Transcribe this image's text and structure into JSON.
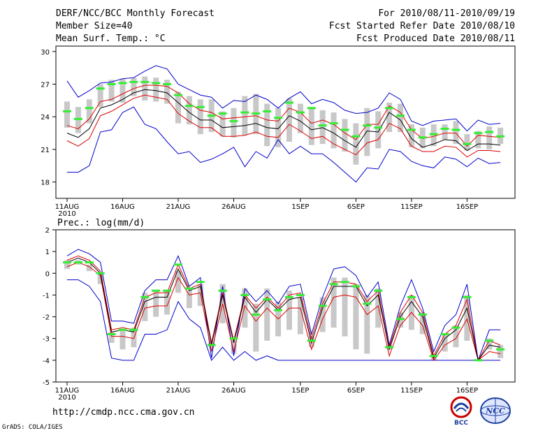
{
  "header": {
    "title": "DERF/NCC/BCC Monthly Forecast",
    "member_size": "Member Size=40",
    "panel1_var": "Mean Surf. Temp.: °C",
    "period": "For 2010/08/11-2010/09/19",
    "started": "Fcst Started Refer Date 2010/08/10",
    "produced": "Fcst Produced Date 2010/08/11"
  },
  "footer": {
    "url": "http://cmdp.ncc.cma.gov.cn",
    "grads": "GrADS: COLA/IGES",
    "logo1_text": "BCC",
    "logo2_text": "NCC"
  },
  "colors": {
    "envelope": "#0000cc",
    "spread": "#dd0000",
    "mean": "#000000",
    "box": "#c8c8c8",
    "median": "#33ee33"
  },
  "chart_data": [
    {
      "type": "box",
      "title": "Mean Surf. Temp.: °C",
      "x_tick_labels": [
        "11AUG",
        "16AUG",
        "21AUG",
        "26AUG",
        "1SEP",
        "6SEP",
        "11SEP",
        "16SEP"
      ],
      "x_tick_day_index": [
        0,
        5,
        10,
        15,
        21,
        26,
        31,
        36
      ],
      "x_year_label": "2010",
      "ylim": [
        16.5,
        30.5
      ],
      "yticks": [
        18,
        21,
        24,
        27,
        30
      ],
      "days": 40,
      "series": [
        {
          "name": "max",
          "values": [
            27.3,
            25.8,
            26.4,
            27.1,
            27.2,
            27.5,
            27.6,
            28.2,
            28.7,
            28.4,
            27.0,
            26.5,
            26.0,
            25.8,
            24.8,
            25.5,
            25.4,
            26.0,
            25.6,
            24.8,
            25.7,
            26.3,
            25.2,
            25.6,
            25.3,
            24.6,
            24.3,
            24.4,
            24.8,
            26.2,
            25.6,
            23.6,
            23.2,
            23.6,
            23.7,
            23.8,
            22.7,
            23.7,
            23.3,
            23.4
          ]
        },
        {
          "name": "mean_plus",
          "values": [
            23.2,
            22.9,
            23.8,
            25.4,
            25.6,
            26.1,
            26.6,
            26.9,
            26.9,
            26.8,
            26.2,
            25.2,
            24.6,
            24.4,
            23.8,
            23.9,
            24.0,
            24.1,
            23.7,
            23.6,
            24.8,
            24.4,
            23.4,
            23.7,
            23.3,
            22.5,
            21.9,
            23.3,
            23.3,
            25.0,
            24.4,
            22.8,
            22.0,
            22.2,
            22.5,
            22.5,
            21.3,
            22.3,
            22.2,
            22.1
          ]
        },
        {
          "name": "mean",
          "values": [
            22.5,
            22.1,
            22.9,
            24.8,
            25.1,
            25.6,
            26.2,
            26.5,
            26.4,
            26.2,
            25.3,
            24.4,
            23.7,
            23.7,
            23.0,
            23.1,
            23.2,
            23.4,
            23.0,
            22.9,
            24.1,
            23.6,
            22.8,
            23.0,
            22.5,
            21.8,
            21.2,
            22.7,
            22.6,
            24.4,
            23.7,
            22.0,
            21.2,
            21.5,
            21.9,
            21.8,
            20.9,
            21.5,
            21.5,
            21.4
          ]
        },
        {
          "name": "mean_minus",
          "values": [
            21.8,
            21.3,
            22.0,
            24.1,
            24.5,
            25.1,
            25.7,
            26.0,
            25.8,
            25.6,
            24.3,
            23.6,
            23.0,
            23.0,
            22.2,
            22.2,
            22.3,
            22.6,
            22.2,
            22.1,
            23.3,
            22.7,
            22.0,
            22.2,
            21.5,
            21.0,
            20.5,
            21.6,
            21.9,
            23.4,
            22.9,
            21.3,
            20.8,
            20.8,
            21.3,
            21.2,
            20.3,
            20.9,
            20.9,
            20.8
          ]
        },
        {
          "name": "min",
          "values": [
            18.9,
            18.9,
            19.5,
            22.6,
            22.8,
            24.4,
            24.9,
            23.3,
            22.9,
            21.7,
            20.6,
            20.8,
            19.8,
            20.1,
            20.6,
            21.2,
            19.4,
            20.8,
            20.2,
            21.9,
            20.6,
            21.3,
            20.6,
            20.6,
            19.8,
            18.9,
            18.0,
            19.3,
            19.2,
            21.0,
            20.8,
            19.9,
            19.5,
            19.3,
            20.3,
            20.1,
            19.4,
            20.2,
            19.7,
            19.8
          ]
        },
        {
          "name": "box_high",
          "values": [
            25.4,
            24.9,
            25.6,
            27.0,
            27.4,
            27.5,
            27.6,
            27.7,
            27.6,
            27.4,
            26.3,
            25.9,
            25.6,
            25.6,
            24.5,
            24.8,
            25.9,
            26.1,
            25.2,
            24.8,
            25.7,
            25.2,
            24.9,
            24.6,
            24.4,
            23.8,
            23.4,
            24.8,
            24.5,
            25.3,
            25.2,
            23.3,
            23.0,
            23.3,
            23.3,
            23.6,
            22.4,
            22.7,
            23.1,
            23.0
          ]
        },
        {
          "name": "box_low",
          "values": [
            23.0,
            22.5,
            23.4,
            24.9,
            25.4,
            25.3,
            25.9,
            25.5,
            25.4,
            25.2,
            23.4,
            23.3,
            22.4,
            22.6,
            22.2,
            22.1,
            22.3,
            22.4,
            21.3,
            21.2,
            21.7,
            22.5,
            21.4,
            21.5,
            21.1,
            20.8,
            19.6,
            20.4,
            21.1,
            22.6,
            22.6,
            21.2,
            21.1,
            21.3,
            21.9,
            21.5,
            20.9,
            21.1,
            21.0,
            21.5
          ]
        },
        {
          "name": "median",
          "values": [
            24.5,
            23.8,
            24.8,
            26.6,
            27.0,
            27.1,
            27.2,
            27.2,
            27.1,
            27.0,
            26.0,
            25.0,
            24.9,
            24.1,
            24.3,
            23.6,
            24.4,
            24.3,
            24.5,
            23.9,
            25.3,
            24.4,
            24.8,
            23.2,
            23.4,
            22.8,
            22.2,
            23.2,
            23.0,
            24.8,
            24.1,
            22.8,
            22.1,
            22.4,
            22.9,
            22.8,
            21.5,
            22.5,
            22.6,
            22.2
          ]
        }
      ]
    },
    {
      "type": "box",
      "title": "Prec.: log(mm/d)",
      "x_tick_labels": [
        "11AUG",
        "16AUG",
        "21AUG",
        "26AUG",
        "1SEP",
        "6SEP",
        "11SEP",
        "16SEP"
      ],
      "x_tick_day_index": [
        0,
        5,
        10,
        15,
        21,
        26,
        31,
        36
      ],
      "x_year_label": "2010",
      "ylim": [
        -5,
        2
      ],
      "yticks": [
        -5,
        -4,
        -3,
        -2,
        -1,
        0,
        1,
        2
      ],
      "days": 40,
      "series": [
        {
          "name": "max",
          "values": [
            0.8,
            1.1,
            0.9,
            0.5,
            -2.2,
            -2.2,
            -2.3,
            -0.8,
            -0.3,
            -0.3,
            0.8,
            -0.6,
            -0.2,
            -3.9,
            -0.6,
            -3.8,
            -0.7,
            -1.3,
            -0.8,
            -1.4,
            -0.6,
            -0.5,
            -2.8,
            -1.1,
            0.2,
            0.3,
            -0.1,
            -1.1,
            -0.4,
            -3.3,
            -1.5,
            -0.3,
            -1.6,
            -3.6,
            -2.4,
            -1.9,
            -0.5,
            -4.0,
            -2.6,
            -2.6
          ]
        },
        {
          "name": "mean_plus",
          "values": [
            0.6,
            0.8,
            0.6,
            0.1,
            -2.6,
            -2.5,
            -2.6,
            -1.1,
            -0.9,
            -0.9,
            0.4,
            -0.7,
            -0.5,
            -3.2,
            -0.9,
            -3.1,
            -1.0,
            -1.6,
            -1.1,
            -1.6,
            -1.0,
            -0.9,
            -3.0,
            -1.4,
            -0.4,
            -0.4,
            -0.5,
            -1.3,
            -0.8,
            -3.4,
            -1.8,
            -1.0,
            -1.8,
            -3.8,
            -2.8,
            -2.4,
            -1.2,
            -4.0,
            -3.1,
            -3.3
          ]
        },
        {
          "name": "mean",
          "values": [
            0.5,
            0.7,
            0.5,
            0.0,
            -2.7,
            -2.6,
            -2.7,
            -1.3,
            -1.1,
            -1.1,
            0.2,
            -0.8,
            -0.6,
            -3.3,
            -1.0,
            -3.2,
            -1.1,
            -1.8,
            -1.2,
            -1.7,
            -1.2,
            -1.1,
            -3.2,
            -1.6,
            -0.6,
            -0.6,
            -0.6,
            -1.5,
            -1.0,
            -3.5,
            -2.0,
            -1.3,
            -2.0,
            -3.9,
            -3.0,
            -2.6,
            -1.6,
            -4.0,
            -3.3,
            -3.4
          ]
        },
        {
          "name": "mean_minus",
          "values": [
            0.3,
            0.5,
            0.3,
            -0.1,
            -2.9,
            -2.9,
            -3.0,
            -1.6,
            -1.5,
            -1.5,
            -0.2,
            -1.0,
            -0.9,
            -3.6,
            -1.4,
            -3.6,
            -1.5,
            -2.2,
            -1.6,
            -2.1,
            -1.6,
            -1.6,
            -3.5,
            -2.1,
            -1.1,
            -1.0,
            -1.1,
            -1.9,
            -1.5,
            -3.8,
            -2.4,
            -1.8,
            -2.4,
            -4.0,
            -3.3,
            -3.0,
            -2.1,
            -4.0,
            -3.6,
            -3.7
          ]
        },
        {
          "name": "min",
          "values": [
            -0.3,
            -0.3,
            -0.6,
            -1.3,
            -3.9,
            -4.0,
            -4.0,
            -2.8,
            -2.8,
            -2.6,
            -1.3,
            -2.1,
            -2.5,
            -4.0,
            -3.4,
            -4.0,
            -3.6,
            -4.0,
            -3.8,
            -4.0,
            -4.0,
            -4.0,
            -4.0,
            -4.0,
            -4.0,
            -4.0,
            -4.0,
            -4.0,
            -4.0,
            -4.0,
            -4.0,
            -4.0,
            -4.0,
            -4.0,
            -4.0,
            -4.0,
            -4.0,
            -4.0,
            -4.0,
            -4.0
          ]
        },
        {
          "name": "box_high",
          "values": [
            0.6,
            0.6,
            0.4,
            0.0,
            -2.7,
            -2.6,
            -2.5,
            -0.9,
            -0.8,
            -0.8,
            0.1,
            -0.8,
            -0.5,
            -3.2,
            -0.5,
            -3.1,
            -0.7,
            -1.4,
            -0.7,
            -1.3,
            -0.8,
            -1.1,
            -2.9,
            -1.1,
            -0.2,
            -0.2,
            -0.5,
            -1.0,
            -0.7,
            -3.3,
            -1.8,
            -1.0,
            -1.8,
            -3.7,
            -2.8,
            -2.4,
            -1.0,
            -4.0,
            -3.0,
            -3.3
          ]
        },
        {
          "name": "box_low",
          "values": [
            0.2,
            0.4,
            0.1,
            -0.5,
            -3.2,
            -3.5,
            -3.4,
            -2.2,
            -2.0,
            -1.9,
            -0.9,
            -1.6,
            -1.5,
            -3.4,
            -2.3,
            -3.7,
            -2.5,
            -3.6,
            -3.1,
            -2.9,
            -2.6,
            -2.8,
            -3.4,
            -2.7,
            -2.5,
            -2.9,
            -3.5,
            -3.7,
            -2.5,
            -3.5,
            -2.5,
            -2.6,
            -2.8,
            -4.0,
            -3.6,
            -3.4,
            -3.1,
            -4.0,
            -3.5,
            -3.9
          ]
        },
        {
          "name": "median",
          "values": [
            0.5,
            0.5,
            0.5,
            0.0,
            -2.8,
            -2.6,
            -2.6,
            -1.1,
            -0.8,
            -0.8,
            0.4,
            -0.7,
            -0.4,
            -3.3,
            -0.8,
            -3.0,
            -1.0,
            -1.9,
            -1.2,
            -1.7,
            -1.1,
            -1.0,
            -3.1,
            -1.5,
            -0.5,
            -0.4,
            -0.6,
            -1.4,
            -0.8,
            -3.4,
            -2.1,
            -1.1,
            -1.9,
            -3.8,
            -2.8,
            -2.5,
            -1.1,
            -4.0,
            -3.1,
            -3.5
          ]
        }
      ]
    }
  ]
}
